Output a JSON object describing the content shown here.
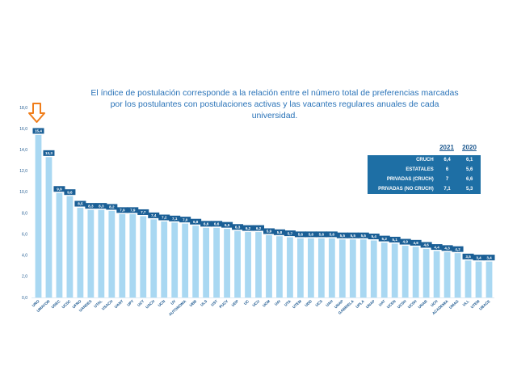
{
  "note": "El índice de postulación corresponde a la relación entre el número total de preferencias marcadas por los postulantes con postulaciones activas y las vacantes regulares anuales de cada universidad.",
  "summary": {
    "year_a": "2021",
    "year_b": "2020",
    "rows": [
      {
        "name": "CRUCH",
        "a": "6,4",
        "b": "6,1"
      },
      {
        "name": "ESTATALES",
        "a": "6",
        "b": "5,6"
      },
      {
        "name": "PRIVADAS (CRUCH)",
        "a": "7",
        "b": "6,6"
      },
      {
        "name": "PRIVADAS (NO CRUCH)",
        "a": "7,1",
        "b": "5,3"
      }
    ]
  },
  "colors": {
    "bar": "#a9d8f2",
    "label_bg": "#1a5f96",
    "text": "#1f5a90",
    "arrow": "#f07d1a"
  },
  "icons": {
    "marker": "down-arrow-icon"
  },
  "chart_data": {
    "type": "bar",
    "title": "",
    "xlabel": "",
    "ylabel": "",
    "ylim": [
      0,
      18
    ],
    "yticks": [
      "0,0",
      "2,0",
      "4,0",
      "6,0",
      "8,0",
      "10,0",
      "12,0",
      "14,0",
      "16,0",
      "18,0"
    ],
    "ytick_values": [
      0,
      2,
      4,
      6,
      8,
      10,
      12,
      14,
      16,
      18
    ],
    "grid": false,
    "categories": [
      "URO",
      "UMAYOR",
      "UDEC",
      "UCSC",
      "UFRO",
      "UANDES",
      "UTAL",
      "USACH",
      "UANT",
      "UPT",
      "UCT",
      "UACH",
      "UCN",
      "UV",
      "AUTONOMA",
      "UBB",
      "ULS",
      "UST",
      "PUCV",
      "UDP",
      "UC",
      "UCU",
      "UCM",
      "UAI",
      "UTA",
      "UTEM",
      "UDD",
      "UCS",
      "UAH",
      "UNAP",
      "GABRIELA",
      "UPLA",
      "UNAP",
      "UAT",
      "UCEN",
      "UCSH",
      "UCSH",
      "UNAB",
      "UCH",
      "ACADEMIA",
      "UMAG",
      "ULL",
      "UTEM",
      "UBACE"
    ],
    "values": [
      15.4,
      13.3,
      9.9,
      9.6,
      8.5,
      8.3,
      8.3,
      8.2,
      7.9,
      7.9,
      7.7,
      7.4,
      7.2,
      7.1,
      7.0,
      6.8,
      6.6,
      6.6,
      6.5,
      6.3,
      6.2,
      6.2,
      5.9,
      5.8,
      5.7,
      5.6,
      5.6,
      5.6,
      5.6,
      5.5,
      5.5,
      5.5,
      5.4,
      5.2,
      5.1,
      4.9,
      4.8,
      4.6,
      4.4,
      4.3,
      4.2,
      3.5,
      3.4,
      3.4
    ],
    "value_labels": [
      "15,4",
      "13,3",
      "9,9",
      "9,6",
      "8,5",
      "8,3",
      "8,3",
      "8,2",
      "7,9",
      "7,9",
      "7,7",
      "7,4",
      "7,2",
      "7,1",
      "7,0",
      "6,8",
      "6,6",
      "6,6",
      "6,5",
      "6,3",
      "6,2",
      "6,2",
      "5,9",
      "5,8",
      "5,7",
      "5,6",
      "5,6",
      "5,6",
      "5,6",
      "5,5",
      "5,5",
      "5,5",
      "5,4",
      "5,2",
      "5,1",
      "4,9",
      "4,8",
      "4,6",
      "4,4",
      "4,3",
      "4,2",
      "3,5",
      "3,4",
      "3,4"
    ]
  }
}
